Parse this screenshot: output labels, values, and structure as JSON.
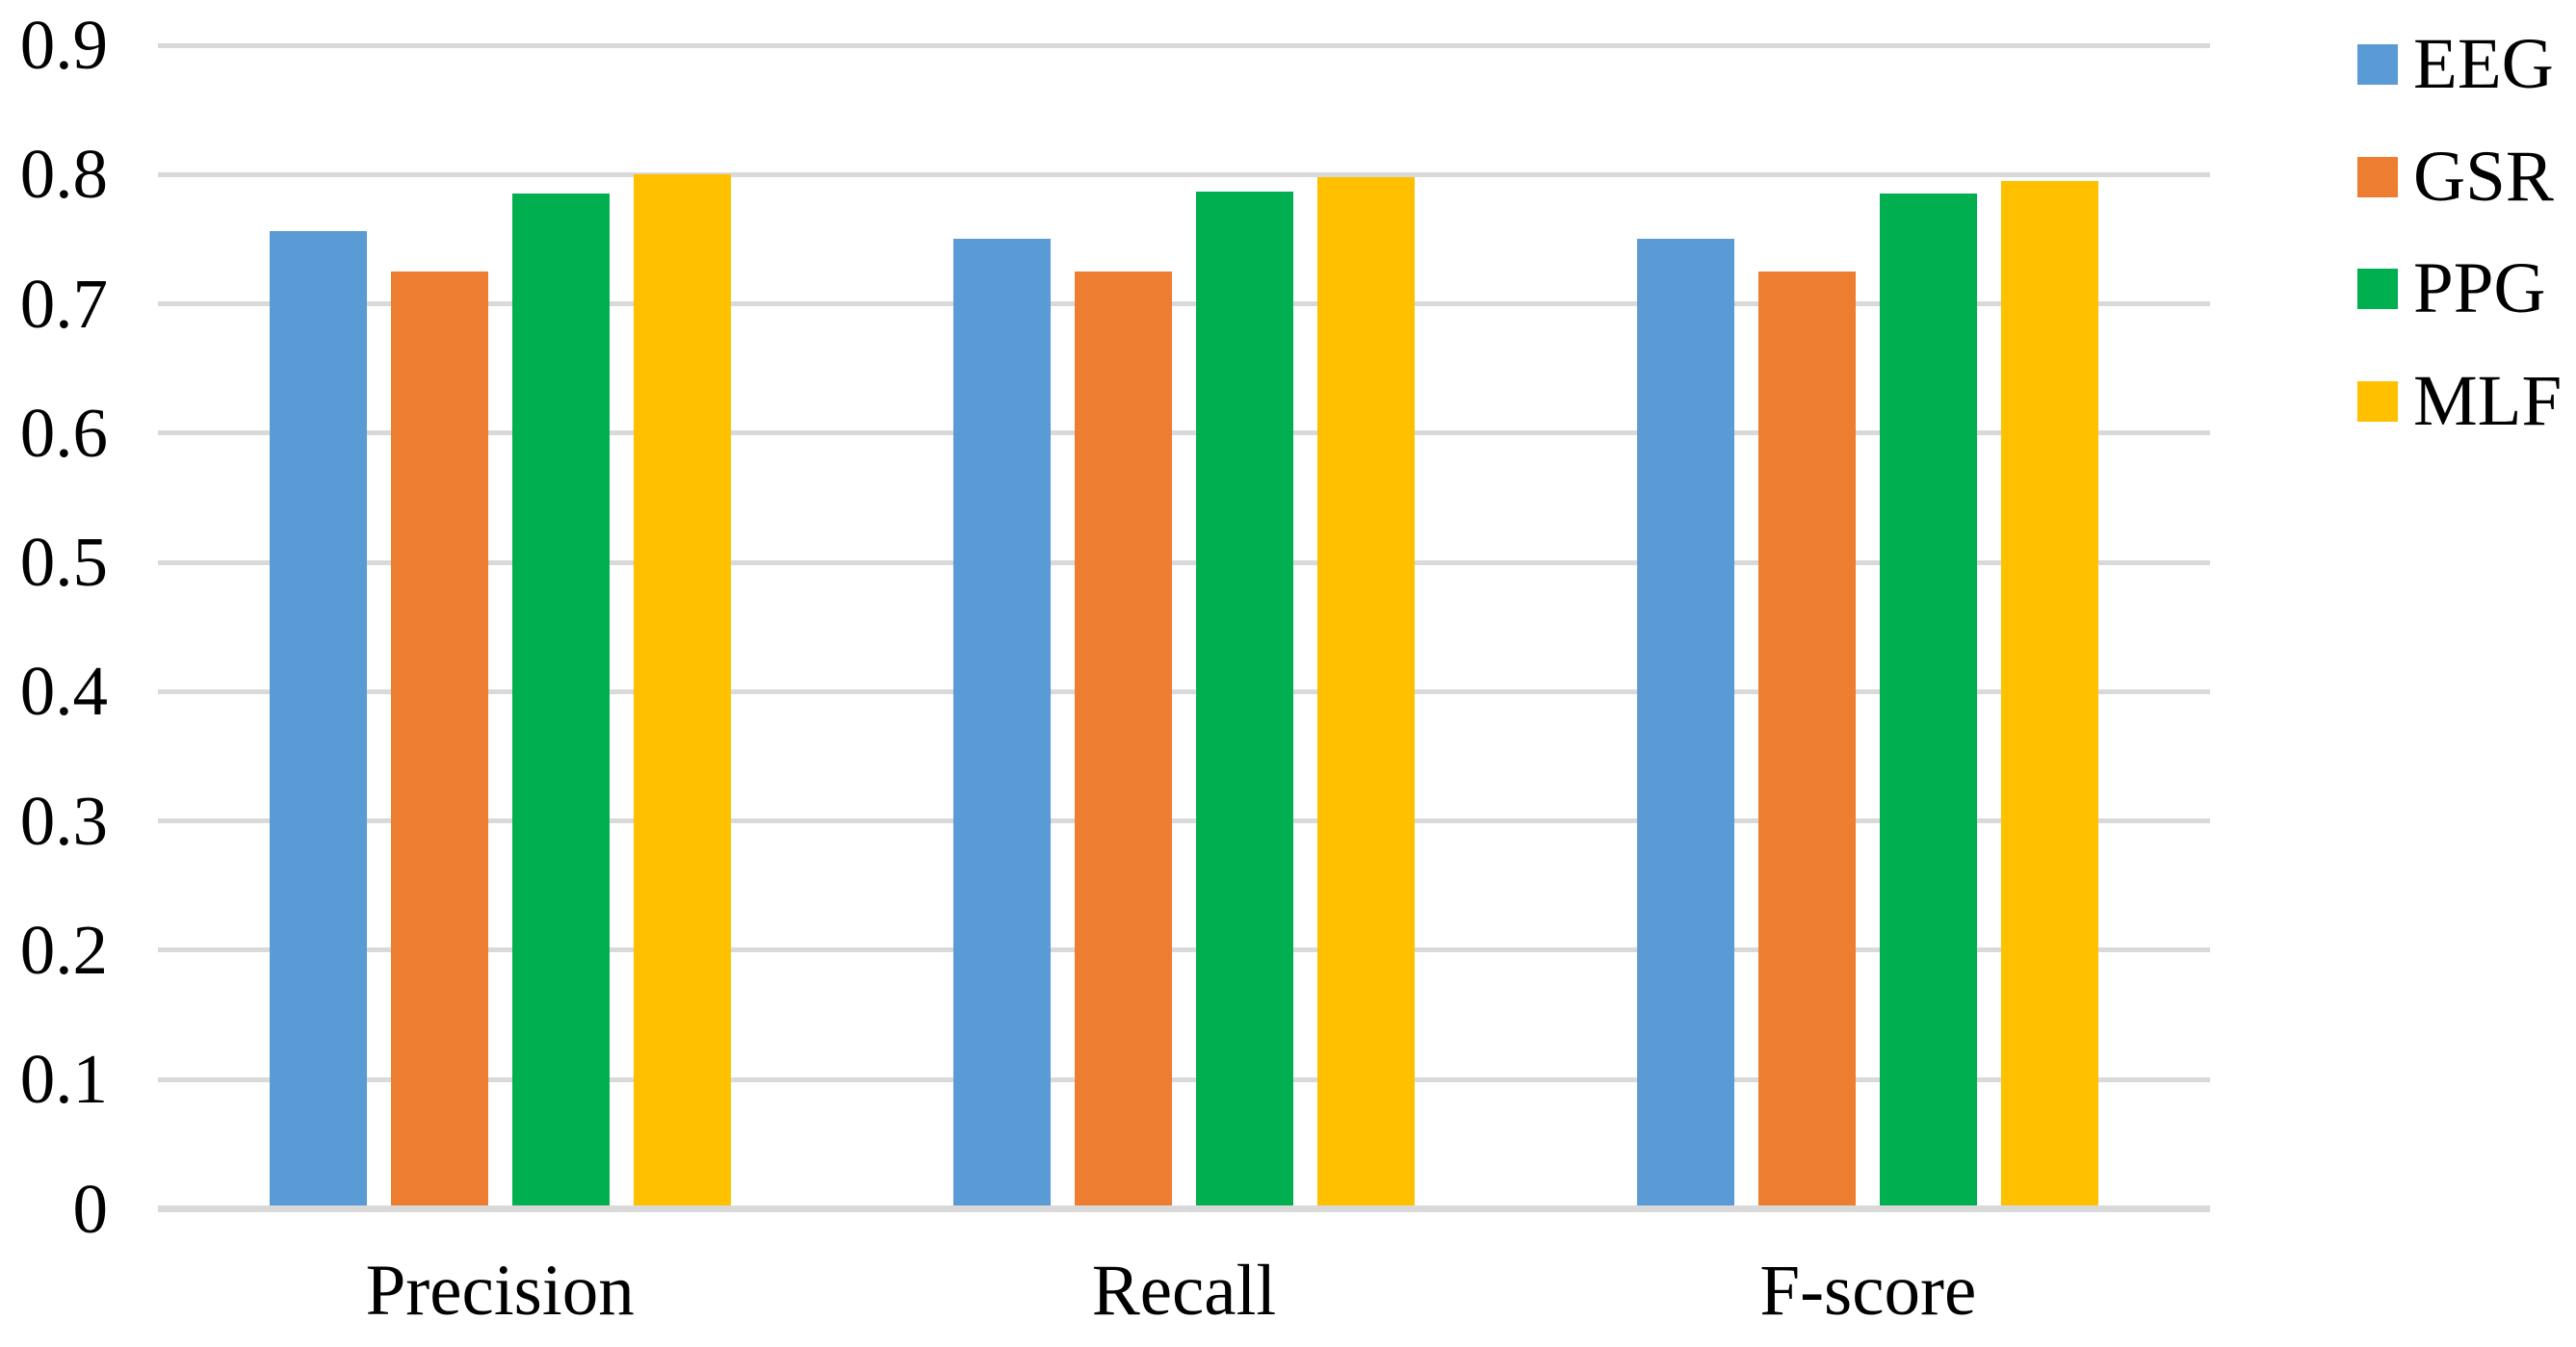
{
  "chart_data": {
    "type": "bar",
    "title": "",
    "categories": [
      "Precision",
      "Recall",
      "F-score"
    ],
    "series": [
      {
        "name": "EEG",
        "color": "#5B9BD5",
        "values": [
          0.756,
          0.75,
          0.75
        ]
      },
      {
        "name": "GSR",
        "color": "#ED7D31",
        "values": [
          0.725,
          0.725,
          0.725
        ]
      },
      {
        "name": "PPG",
        "color": "#00B050",
        "values": [
          0.785,
          0.787,
          0.785
        ]
      },
      {
        "name": "MLF",
        "color": "#FFC000",
        "values": [
          0.8,
          0.798,
          0.795
        ]
      }
    ],
    "y_axis": {
      "min": 0,
      "max": 0.9,
      "tick_interval": 0.1,
      "tick_labels": [
        "0",
        "0.1",
        "0.2",
        "0.3",
        "0.4",
        "0.5",
        "0.6",
        "0.7",
        "0.8",
        "0.9"
      ]
    },
    "x_axis_label": "",
    "y_axis_label": "",
    "grid": true,
    "gridline_color": "#D9D9D9",
    "axis_line_color": "#D9D9D9",
    "background_color": "#FFFFFF",
    "text_color": "#000000",
    "legend_position": "right"
  }
}
